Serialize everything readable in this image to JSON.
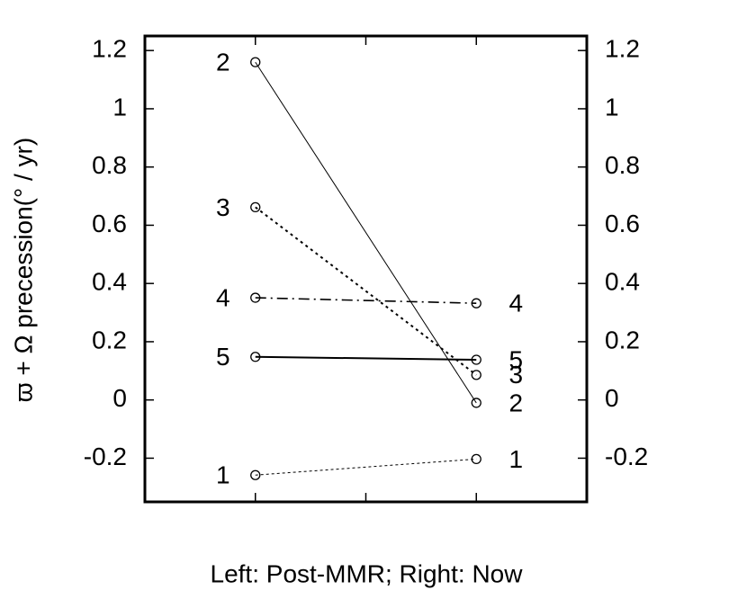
{
  "chart_data": {
    "type": "slope",
    "y_label": "ϖ + Ω precession(° / yr)",
    "x_label": "Left: Post-MMR; Right: Now",
    "x": [
      1,
      3
    ],
    "xlim": [
      0,
      4
    ],
    "xticks": [
      1,
      2,
      3
    ],
    "ylim": [
      -0.35,
      1.25
    ],
    "yticks": [
      -0.2,
      0,
      0.2,
      0.4,
      0.6,
      0.8,
      1,
      1.2
    ],
    "y2lim": [
      -0.35,
      1.25
    ],
    "y2ticks": [
      -0.2,
      0,
      0.2,
      0.4,
      0.6,
      0.8,
      1,
      1.2
    ],
    "series": [
      {
        "name": "1",
        "color": "#000000",
        "dash": "dotted-thin",
        "values": [
          -0.258,
          -0.203
        ]
      },
      {
        "name": "2",
        "color": "#000000",
        "dash": "solid-thin",
        "values": [
          1.16,
          -0.01
        ]
      },
      {
        "name": "3",
        "color": "#000000",
        "dash": "dotted",
        "values": [
          0.662,
          0.086
        ]
      },
      {
        "name": "4",
        "color": "#000000",
        "dash": "dash-dot",
        "values": [
          0.351,
          0.332
        ]
      },
      {
        "name": "5",
        "color": "#000000",
        "dash": "solid",
        "values": [
          0.148,
          0.138
        ]
      }
    ]
  }
}
